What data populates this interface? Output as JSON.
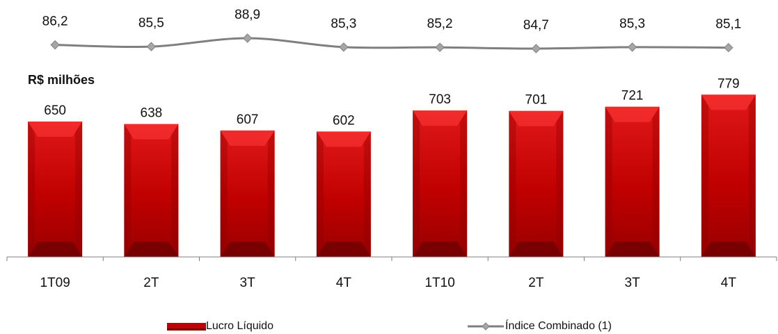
{
  "chart_data": {
    "type": "bar",
    "categories": [
      "1T09",
      "2T",
      "3T",
      "4T",
      "1T10",
      "2T",
      "3T",
      "4T"
    ],
    "unit_label": "R$ milhões",
    "series": [
      {
        "name": "Lucro Líquido",
        "kind": "bar",
        "values": [
          650,
          638,
          607,
          602,
          703,
          701,
          721,
          779
        ],
        "labels": [
          "650",
          "638",
          "607",
          "602",
          "703",
          "701",
          "721",
          "779"
        ],
        "color": "#c00000"
      },
      {
        "name": "Índice Combinado (1)",
        "kind": "line",
        "values": [
          86.2,
          85.5,
          88.9,
          85.3,
          85.2,
          84.7,
          85.3,
          85.1
        ],
        "labels": [
          "86,2",
          "85,5",
          "88,9",
          "85,3",
          "85,2",
          "84,7",
          "85,3",
          "85,1"
        ],
        "color": "#7f7f7f"
      }
    ],
    "grid": false,
    "legend_position": "bottom"
  }
}
